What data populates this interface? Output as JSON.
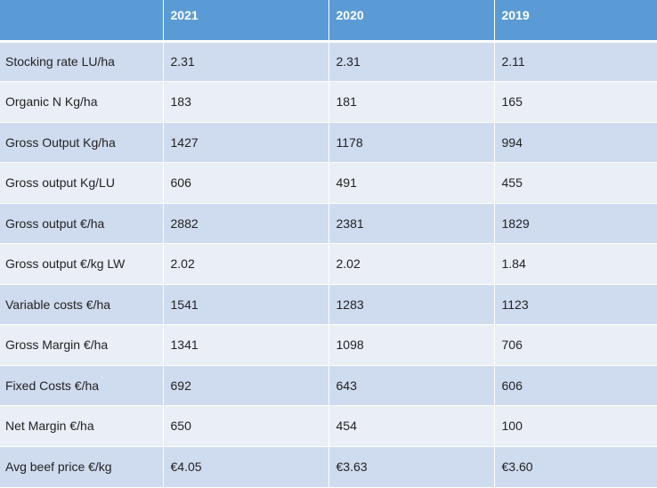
{
  "table": {
    "headers": [
      "",
      "2021",
      "2020",
      "2019"
    ],
    "rows": [
      {
        "label": "Stocking rate LU/ha",
        "values": [
          "2.31",
          "2.31",
          "2.11"
        ]
      },
      {
        "label": "Organic N Kg/ha",
        "values": [
          "183",
          "181",
          "165"
        ]
      },
      {
        "label": "Gross Output Kg/ha",
        "values": [
          "1427",
          "1178",
          "994"
        ]
      },
      {
        "label": "Gross output  Kg/LU",
        "values": [
          "606",
          "491",
          "455"
        ]
      },
      {
        "label": "Gross output  €/ha",
        "values": [
          "2882",
          "2381",
          "1829"
        ]
      },
      {
        "label": "Gross output  €/kg LW",
        "values": [
          "2.02",
          "2.02",
          "1.84"
        ]
      },
      {
        "label": "Variable costs €/ha",
        "values": [
          "1541",
          "1283",
          "1123"
        ]
      },
      {
        "label": "Gross Margin €/ha",
        "values": [
          "1341",
          "1098",
          "706"
        ]
      },
      {
        "label": "Fixed Costs €/ha",
        "values": [
          "692",
          "643",
          "606"
        ]
      },
      {
        "label": "Net Margin €/ha",
        "values": [
          "650",
          "454",
          "100"
        ]
      },
      {
        "label": "Avg beef price €/kg",
        "values": [
          "€4.05",
          "€3.63",
          "€3.60"
        ]
      }
    ]
  },
  "colors": {
    "header_bg": "#5b9bd5",
    "row_dark": "#cfdbef",
    "row_light": "#e9eef7"
  }
}
